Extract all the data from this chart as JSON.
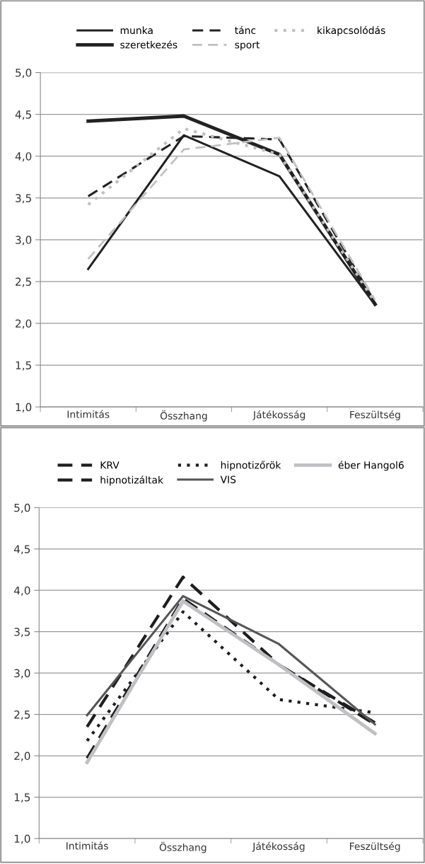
{
  "chart_data": [
    {
      "type": "line",
      "categories": [
        "Intimitás",
        "Összhang",
        "Játékosság",
        "Feszültség"
      ],
      "ylim": [
        1.0,
        5.0
      ],
      "yticks": [
        {
          "value": 1.0,
          "label": "1,0"
        },
        {
          "value": 1.5,
          "label": "1,5"
        },
        {
          "value": 2.0,
          "label": "2,0"
        },
        {
          "value": 2.5,
          "label": "2,5"
        },
        {
          "value": 3.0,
          "label": "3,0"
        },
        {
          "value": 3.5,
          "label": "3,5"
        },
        {
          "value": 4.0,
          "label": "4,0"
        },
        {
          "value": 4.5,
          "label": "4,5"
        },
        {
          "value": 5.0,
          "label": "5,0"
        }
      ],
      "grid": "y",
      "legend": "top",
      "series": [
        {
          "name": "munka",
          "color": "#222222",
          "line_style": "solid",
          "values": [
            2.65,
            4.25,
            3.76,
            2.22
          ]
        },
        {
          "name": "szeretkezés",
          "color": "#222222",
          "line_style": "solid",
          "values": [
            4.42,
            4.48,
            4.02,
            2.23
          ]
        },
        {
          "name": "tánc",
          "color": "#222222",
          "line_style": "dashed",
          "values": [
            3.52,
            4.24,
            4.2,
            2.25
          ]
        },
        {
          "name": "sport",
          "color": "#c0c0c0",
          "line_style": "dashed",
          "values": [
            2.77,
            4.08,
            4.22,
            2.28
          ]
        },
        {
          "name": "kikapcsolódás",
          "color": "#c0c0c0",
          "line_style": "dotted",
          "values": [
            3.42,
            4.33,
            4.02,
            2.25
          ]
        }
      ]
    },
    {
      "type": "line",
      "categories": [
        "Intimitás",
        "Összhang",
        "Játékosság",
        "Feszültség"
      ],
      "ylim": [
        1.0,
        5.0
      ],
      "yticks": [
        {
          "value": 1.0,
          "label": "1,0"
        },
        {
          "value": 1.5,
          "label": "1,5"
        },
        {
          "value": 2.0,
          "label": "2,0"
        },
        {
          "value": 2.5,
          "label": "2,5"
        },
        {
          "value": 3.0,
          "label": "3,0"
        },
        {
          "value": 3.5,
          "label": "3,5"
        },
        {
          "value": 4.0,
          "label": "4,0"
        },
        {
          "value": 4.5,
          "label": "4,5"
        },
        {
          "value": 5.0,
          "label": "5,0"
        }
      ],
      "grid": "y",
      "legend": "top",
      "series": [
        {
          "name": "KRV",
          "color": "#1e1e1e",
          "line_style": "dashed",
          "values": [
            1.97,
            3.9,
            3.1,
            2.4
          ]
        },
        {
          "name": "hipnotizáltak",
          "color": "#1e1e1e",
          "line_style": "dashed",
          "values": [
            2.35,
            4.16,
            3.1,
            2.38
          ]
        },
        {
          "name": "hipnotizőrök",
          "color": "#1e1e1e",
          "line_style": "dotted",
          "values": [
            2.18,
            3.74,
            2.68,
            2.52
          ]
        },
        {
          "name": "VIS",
          "color": "#555555",
          "line_style": "solid",
          "values": [
            2.49,
            3.93,
            3.35,
            2.38
          ]
        },
        {
          "name": "éber Hangol6",
          "color": "#c0c0c4",
          "line_style": "solid",
          "values": [
            1.92,
            3.87,
            3.1,
            2.27
          ]
        }
      ]
    }
  ]
}
